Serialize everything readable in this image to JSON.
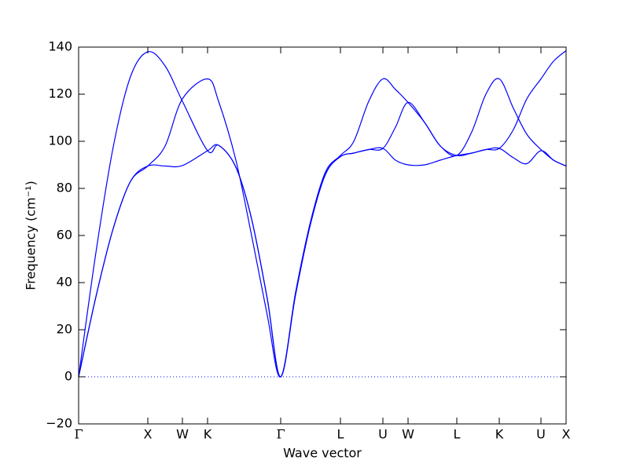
{
  "chart_data": {
    "type": "line",
    "xlabel": "Wave vector",
    "ylabel": "Frequency (cm⁻¹)",
    "x": [
      0,
      0.22,
      0.44,
      0.66,
      0.88,
      1.1,
      1.32,
      1.64,
      1.78,
      2.0,
      2.2,
      2.4,
      2.57,
      2.76,
      2.95,
      3.14,
      3.33,
      3.5,
      3.69,
      3.87,
      4.03,
      4.19,
      4.4,
      4.6,
      4.81,
      5.0,
      5.18,
      5.35,
      5.53,
      5.7,
      5.88,
      6.04,
      6.2
    ],
    "series": [
      {
        "color": "#0000ff",
        "values": [
          0,
          52.8,
          97.6,
          127.5,
          138,
          132,
          117,
          96,
          98.3,
          89,
          67,
          33,
          0,
          36,
          66,
          87,
          94,
          100,
          117,
          126.5,
          122,
          116.5,
          108,
          98,
          94,
          104,
          120,
          126.5,
          114,
          103,
          96.5,
          92,
          89.5
        ]
      },
      {
        "color": "#0000ff",
        "values": [
          0,
          34,
          63,
          83,
          89.5,
          98,
          118,
          126.5,
          117,
          92,
          60,
          26,
          0,
          35,
          65,
          86,
          93.5,
          95,
          96.5,
          97,
          106,
          116.5,
          108,
          98,
          94,
          95,
          96.5,
          97,
          105,
          118,
          126.5,
          134,
          138.5
        ]
      },
      {
        "color": "#0000ff",
        "values": [
          0,
          34,
          63,
          83,
          89.5,
          89.5,
          89.7,
          96,
          98.3,
          89,
          67,
          33,
          0,
          35,
          65,
          86,
          93.5,
          95,
          96.5,
          97,
          92,
          90,
          90,
          92,
          94,
          95,
          96.5,
          97,
          93,
          90.5,
          96,
          92,
          89.5
        ]
      }
    ],
    "zero_line": {
      "y": 0,
      "color": "#0000ff",
      "style": "dotted"
    },
    "xlim": [
      0,
      6.2
    ],
    "xticks": [
      {
        "value": 0,
        "label": "Γ"
      },
      {
        "value": 0.88,
        "label": "X"
      },
      {
        "value": 1.32,
        "label": "W"
      },
      {
        "value": 1.64,
        "label": "K"
      },
      {
        "value": 2.57,
        "label": "Γ"
      },
      {
        "value": 3.33,
        "label": "L"
      },
      {
        "value": 3.87,
        "label": "U"
      },
      {
        "value": 4.19,
        "label": "W"
      },
      {
        "value": 4.81,
        "label": "L"
      },
      {
        "value": 5.35,
        "label": "K"
      },
      {
        "value": 5.88,
        "label": "U"
      },
      {
        "value": 6.2,
        "label": "X"
      }
    ],
    "ylim": [
      -20,
      140
    ],
    "yticks": [
      {
        "value": -20,
        "label": "−20"
      },
      0,
      20,
      40,
      60,
      80,
      100,
      120,
      140
    ],
    "grid": false
  }
}
